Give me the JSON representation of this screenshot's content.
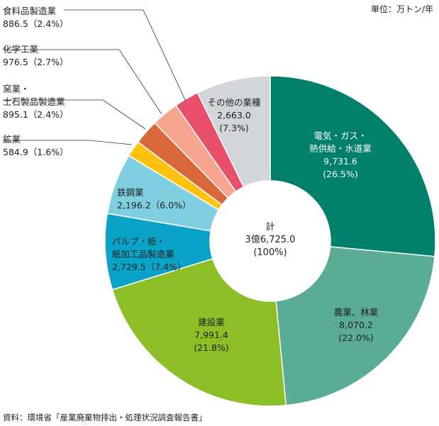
{
  "unit_label": "単位：万トン/年",
  "source": "資料：環境省「産業廃棄物排出・処理状況調査報告書」",
  "chart_data": {
    "type": "pie",
    "variant": "donut",
    "title": "",
    "center_label": [
      "計",
      "3億6,725.0",
      "(100%)"
    ],
    "total": 36725.0,
    "slices": [
      {
        "name": "電気・ガス・熱供給・水道業",
        "label_lines": [
          "電気・ガス・",
          "熱供給・水道業",
          "9,731.6",
          "(26.5%)"
        ],
        "value": 9731.6,
        "percent": 26.5,
        "color": "#007f6a"
      },
      {
        "name": "農業、林業",
        "label_lines": [
          "農業、林業",
          "8,070.2",
          "(22.0%)"
        ],
        "value": 8070.2,
        "percent": 22.0,
        "color": "#5aad94"
      },
      {
        "name": "建設業",
        "label_lines": [
          "建設業",
          "7,991.4",
          "(21.8%)"
        ],
        "value": 7991.4,
        "percent": 21.8,
        "color": "#8cbf26"
      },
      {
        "name": "パルプ・紙・紙加工品製造業",
        "label_lines": [
          "パルプ・紙・",
          "紙加工品製造業",
          "2,729.5（7.4%）"
        ],
        "value": 2729.5,
        "percent": 7.4,
        "color": "#0aa3c8"
      },
      {
        "name": "鉄鋼業",
        "label_lines": [
          "鉄鋼業",
          "2,196.2（6.0%）"
        ],
        "value": 2196.2,
        "percent": 6.0,
        "color": "#7fcfe0"
      },
      {
        "name": "鉱業",
        "label_lines": [
          "鉱業",
          "584.9（1.6%）"
        ],
        "value": 584.9,
        "percent": 1.6,
        "color": "#ffc20e"
      },
      {
        "name": "窯業・土石製品製造業",
        "label_lines": [
          "窯業・",
          "土石製品製造業",
          "895.1（2.4%）"
        ],
        "value": 895.1,
        "percent": 2.4,
        "color": "#d9673a"
      },
      {
        "name": "化学工業",
        "label_lines": [
          "化学工業",
          "976.5（2.7%）"
        ],
        "value": 976.5,
        "percent": 2.7,
        "color": "#f7a58f"
      },
      {
        "name": "食料品製造業",
        "label_lines": [
          "食料品製造業",
          "886.5（2.4%）"
        ],
        "value": 886.5,
        "percent": 2.4,
        "color": "#e8506a"
      },
      {
        "name": "その他の業種",
        "label_lines": [
          "その他の業種",
          "2,663.0",
          "(7.3%)"
        ],
        "value": 2663.0,
        "percent": 7.3,
        "color": "#d2d6d9"
      }
    ]
  }
}
